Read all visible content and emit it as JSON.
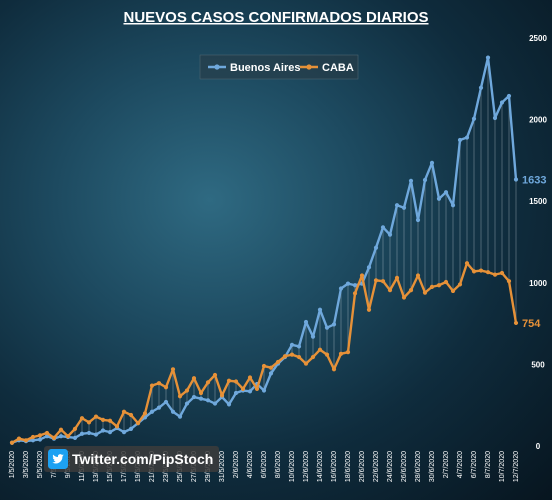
{
  "chart_data": {
    "type": "line",
    "title": "NUEVOS CASOS  CONFIRMADOS DIARIOS",
    "x": [
      "1/5/2020",
      "2/5/2020",
      "3/5/2020",
      "4/5/2020",
      "5/5/2020",
      "6/5/2020",
      "7/5/2020",
      "8/5/2020",
      "9/5/2020",
      "10/5/2020",
      "11/5/2020",
      "12/5/2020",
      "13/5/2020",
      "14/5/2020",
      "15/5/2020",
      "16/5/2020",
      "17/5/2020",
      "18/5/2020",
      "19/5/2020",
      "20/5/2020",
      "21/5/2020",
      "22/5/2020",
      "23/5/2020",
      "24/5/2020",
      "25/5/2020",
      "26/5/2020",
      "27/5/2020",
      "28/5/2020",
      "29/5/2020",
      "30/5/2020",
      "31/5/2020",
      "1/6/2020",
      "2/6/2020",
      "3/6/2020",
      "4/6/2020",
      "5/6/2020",
      "6/6/2020",
      "7/6/2020",
      "8/6/2020",
      "9/6/2020",
      "10/6/2020",
      "11/6/2020",
      "12/6/2020",
      "13/6/2020",
      "14/6/2020",
      "15/6/2020",
      "16/6/2020",
      "17/6/2020",
      "18/6/2020",
      "19/6/2020",
      "20/6/2020",
      "21/6/2020",
      "22/6/2020",
      "23/6/2020",
      "24/6/2020",
      "25/6/2020",
      "26/6/2020",
      "27/6/2020",
      "28/6/2020",
      "29/6/2020",
      "30/6/2020",
      "1/7/2020",
      "2/7/2020",
      "3/7/2020",
      "4/7/2020",
      "5/7/2020",
      "6/7/2020",
      "7/7/2020",
      "8/7/2020",
      "9/7/2020",
      "10/7/2020",
      "11/7/2020",
      "12/7/2020"
    ],
    "x_tick_labels": [
      "1/5/2020",
      "3/5/2020",
      "5/5/2020",
      "7/5/2020",
      "9/5/2020",
      "11/5/2020",
      "13/5/2020",
      "15/5/2020",
      "17/5/2020",
      "19/5/2020",
      "21/5/2020",
      "23/5/2020",
      "25/5/2020",
      "27/5/2020",
      "29/5/2020",
      "31/5/2020",
      "2/6/2020",
      "4/6/2020",
      "6/6/2020",
      "8/6/2020",
      "10/6/2020",
      "12/6/2020",
      "14/6/2020",
      "16/6/2020",
      "18/6/2020",
      "20/6/2020",
      "22/6/2020",
      "24/6/2020",
      "26/6/2020",
      "28/6/2020",
      "30/6/2020",
      "2/7/2020",
      "4/7/2020",
      "6/7/2020",
      "8/7/2020",
      "10/7/2020",
      "12/7/2020"
    ],
    "series": [
      {
        "name": "Buenos Aires",
        "color": "#6fa8dc",
        "values": [
          20,
          35,
          30,
          35,
          40,
          60,
          45,
          60,
          55,
          50,
          75,
          80,
          70,
          95,
          85,
          110,
          85,
          105,
          140,
          175,
          210,
          235,
          270,
          210,
          180,
          260,
          300,
          290,
          280,
          260,
          300,
          255,
          325,
          340,
          335,
          380,
          340,
          445,
          505,
          545,
          620,
          610,
          760,
          670,
          835,
          725,
          745,
          965,
          995,
          985,
          995,
          1095,
          1215,
          1340,
          1295,
          1475,
          1460,
          1625,
          1385,
          1630,
          1735,
          1515,
          1555,
          1475,
          1875,
          1890,
          2005,
          2195,
          2380,
          2010,
          2105,
          2145,
          1633
        ],
        "end_label": "1633"
      },
      {
        "name": "CABA",
        "color": "#e69138",
        "values": [
          20,
          45,
          35,
          55,
          65,
          80,
          50,
          100,
          60,
          105,
          170,
          145,
          180,
          160,
          155,
          120,
          210,
          190,
          140,
          200,
          370,
          385,
          360,
          470,
          305,
          340,
          415,
          325,
          390,
          435,
          310,
          400,
          395,
          350,
          420,
          350,
          490,
          480,
          515,
          550,
          560,
          545,
          505,
          545,
          590,
          560,
          470,
          565,
          575,
          935,
          1045,
          835,
          1015,
          1010,
          955,
          1030,
          910,
          955,
          1045,
          940,
          975,
          985,
          1005,
          950,
          990,
          1120,
          1070,
          1075,
          1065,
          1050,
          1060,
          1010,
          754
        ],
        "end_label": "754"
      }
    ],
    "ylim": [
      0,
      2500
    ],
    "y_ticks": [
      0,
      500,
      1000,
      1500,
      2000,
      2500
    ],
    "y_axis_side": "right",
    "grid": false,
    "drop_lines": true,
    "legend": {
      "position": "top-center",
      "entries": [
        "Buenos Aires",
        "CABA"
      ]
    }
  },
  "watermark": {
    "text": "Twitter.com/PipStoch",
    "icon": "twitter-bird-icon"
  }
}
